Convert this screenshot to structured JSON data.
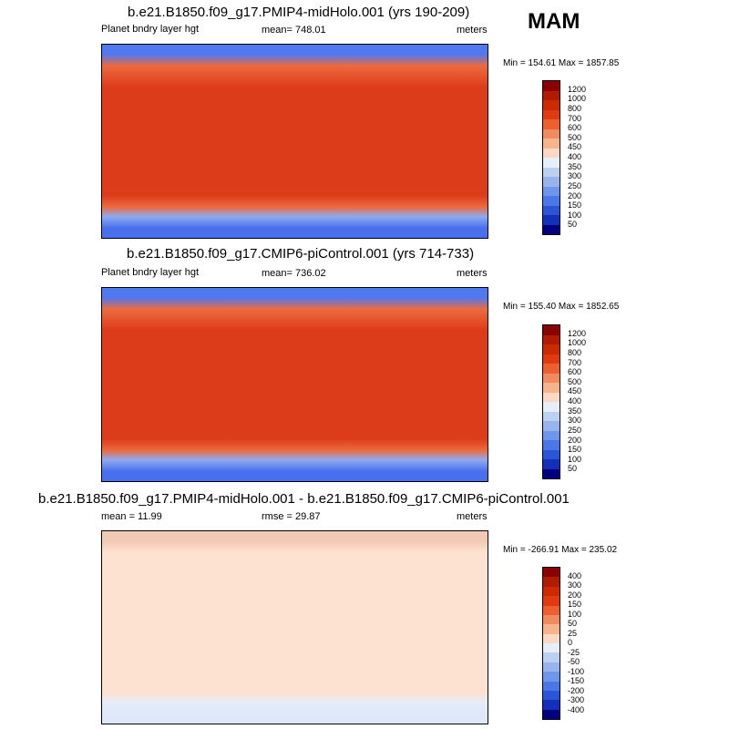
{
  "season": "MAM",
  "panels": [
    {
      "title": "b.e21.B1850.f09_g17.PMIP4-midHolo.001 (yrs 190-209)",
      "left_label": "Planet bndry layer hgt",
      "center_label": "mean= 748.01",
      "right_label": "meters",
      "minmax": "Min = 154.61 Max = 1857.85",
      "legend": {
        "labels": [
          "1200",
          "1000",
          "800",
          "700",
          "600",
          "500",
          "450",
          "400",
          "350",
          "300",
          "250",
          "200",
          "150",
          "100",
          "50"
        ],
        "colors": [
          "#8b0000",
          "#b01c00",
          "#cc2a00",
          "#e03a10",
          "#ec6030",
          "#f08a60",
          "#f6b48c",
          "#fbd8c4",
          "#e6eef8",
          "#bcd0f0",
          "#98b4ec",
          "#6e96ea",
          "#4a78e6",
          "#2a56d6",
          "#1230b8",
          "#00007e"
        ]
      },
      "map": {
        "base": "#dd3c1a",
        "north": [
          "#5078f0",
          "#ec6a3e"
        ],
        "south": [
          "#ec6a3e",
          "#8eaaf0",
          "#4870ee"
        ]
      }
    },
    {
      "title": "b.e21.B1850.f09_g17.CMIP6-piControl.001 (yrs 714-733)",
      "left_label": "Planet bndry layer hgt",
      "center_label": "mean= 736.02",
      "right_label": "meters",
      "minmax": "Min = 155.40 Max = 1852.65",
      "legend": {
        "labels": [
          "1200",
          "1000",
          "800",
          "700",
          "600",
          "500",
          "450",
          "400",
          "350",
          "300",
          "250",
          "200",
          "150",
          "100",
          "50"
        ],
        "colors": [
          "#8b0000",
          "#b01c00",
          "#cc2a00",
          "#e03a10",
          "#ec6030",
          "#f08a60",
          "#f6b48c",
          "#fbd8c4",
          "#e6eef8",
          "#bcd0f0",
          "#98b4ec",
          "#6e96ea",
          "#4a78e6",
          "#2a56d6",
          "#1230b8",
          "#00007e"
        ]
      },
      "map": {
        "base": "#dd3c1a",
        "north": [
          "#5078f0",
          "#ec6a3e"
        ],
        "south": [
          "#ec6a3e",
          "#8eaaf0",
          "#4870ee"
        ]
      }
    },
    {
      "title": "b.e21.B1850.f09_g17.PMIP4-midHolo.001 - b.e21.B1850.f09_g17.CMIP6-piControl.001",
      "left_label": "mean =  11.99",
      "center_label": "rmse =  29.87",
      "right_label": "meters",
      "minmax": "Min = -266.91 Max = 235.02",
      "legend": {
        "labels": [
          "400",
          "300",
          "200",
          "150",
          "100",
          "50",
          "25",
          "0",
          "-25",
          "-50",
          "-100",
          "-150",
          "-200",
          "-300",
          "-400"
        ],
        "colors": [
          "#8b0000",
          "#b01c00",
          "#cc2a00",
          "#e03a10",
          "#ec6030",
          "#f08a60",
          "#f6b48c",
          "#fbd8c4",
          "#e6eef8",
          "#bcd0f0",
          "#98b4ec",
          "#6e96ea",
          "#4a78e6",
          "#2a56d6",
          "#1230b8",
          "#00007e"
        ]
      },
      "map": {
        "base": "#fde2d2",
        "north": [
          "#f2c9b2",
          "#fde2d2"
        ],
        "south": [
          "#fde2d2",
          "#e4ecf8",
          "#dfe8f8"
        ]
      }
    }
  ]
}
